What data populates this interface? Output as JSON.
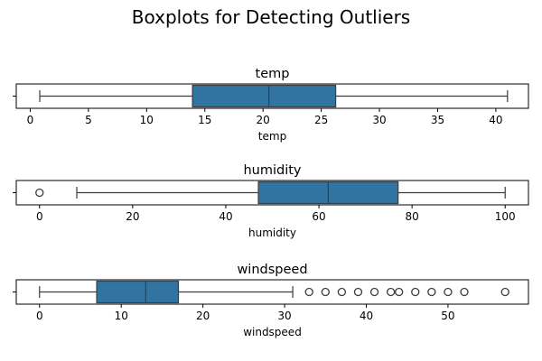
{
  "figure": {
    "suptitle": "Boxplots for Detecting Outliers"
  },
  "colors": {
    "box_fill": "#3274a1",
    "line": "#3d3d3d",
    "axis": "#000000",
    "text": "#000000"
  },
  "chart_data": [
    {
      "type": "boxplot",
      "title": "temp",
      "xlabel": "temp",
      "xlim": [
        -1.2,
        42.8
      ],
      "ticks": [
        0,
        5,
        10,
        15,
        20,
        25,
        30,
        35,
        40
      ],
      "tick_labels": [
        "0",
        "5",
        "10",
        "15",
        "20",
        "25",
        "30",
        "35",
        "40"
      ],
      "whisker_low": 0.82,
      "q1": 13.94,
      "median": 20.5,
      "q3": 26.24,
      "whisker_high": 41.0,
      "outliers": []
    },
    {
      "type": "boxplot",
      "title": "humidity",
      "xlabel": "humidity",
      "xlim": [
        -5,
        105
      ],
      "ticks": [
        0,
        20,
        40,
        60,
        80,
        100
      ],
      "tick_labels": [
        "0",
        "20",
        "40",
        "60",
        "80",
        "100"
      ],
      "whisker_low": 8,
      "q1": 47,
      "median": 62,
      "q3": 77,
      "whisker_high": 100,
      "outliers": [
        0
      ]
    },
    {
      "type": "boxplot",
      "title": "windspeed",
      "xlabel": "windspeed",
      "xlim": [
        -2.85,
        59.85
      ],
      "ticks": [
        0,
        10,
        20,
        30,
        40,
        50
      ],
      "tick_labels": [
        "0",
        "10",
        "20",
        "30",
        "40",
        "50"
      ],
      "whisker_low": 0,
      "q1": 7.0,
      "median": 13.0,
      "q3": 17.0,
      "whisker_high": 31.0,
      "outliers": [
        33.0,
        35.0,
        37.0,
        39.0,
        41.0,
        43.0,
        44.0,
        46.0,
        48.0,
        50.0,
        52.0,
        57.0
      ]
    }
  ]
}
